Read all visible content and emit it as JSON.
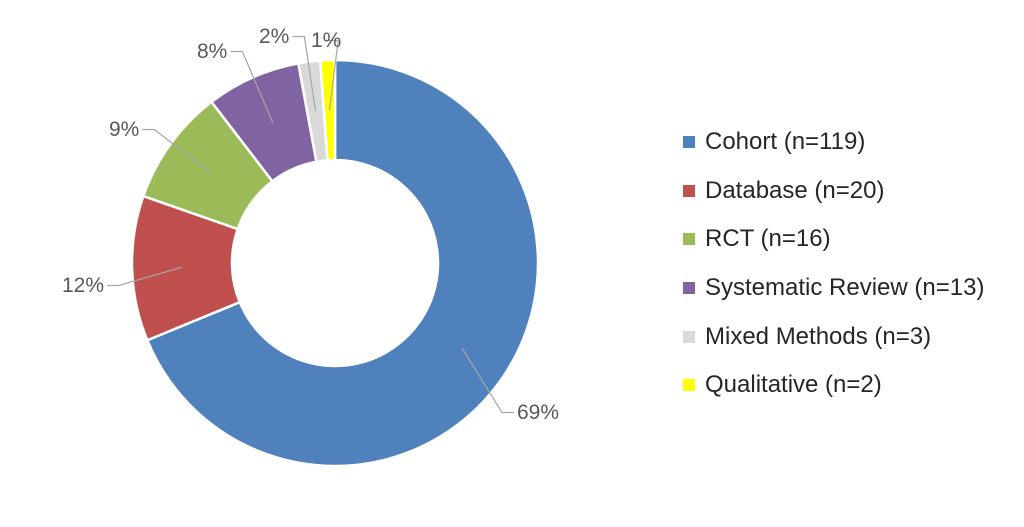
{
  "chart_data": {
    "type": "pie",
    "subtype": "donut",
    "title": "",
    "legend_position": "right",
    "slices": [
      {
        "name": "Cohort",
        "legend_label": "Cohort (n=119)",
        "count": 119,
        "percent_label": "69%",
        "color": "#4f81bd"
      },
      {
        "name": "Database",
        "legend_label": "Database (n=20)",
        "count": 20,
        "percent_label": "12%",
        "color": "#c0504d"
      },
      {
        "name": "RCT",
        "legend_label": "RCT (n=16)",
        "count": 16,
        "percent_label": "9%",
        "color": "#9bbb59"
      },
      {
        "name": "Systematic Review",
        "legend_label": "Systematic Review (n=13)",
        "count": 13,
        "percent_label": "8%",
        "color": "#8064a2"
      },
      {
        "name": "Mixed Methods",
        "legend_label": "Mixed Methods (n=3)",
        "count": 3,
        "percent_label": "2%",
        "color": "#d9d9d9"
      },
      {
        "name": "Qualitative",
        "legend_label": "Qualitative (n=2)",
        "count": 2,
        "percent_label": "1%",
        "color": "#ffff00"
      }
    ]
  }
}
